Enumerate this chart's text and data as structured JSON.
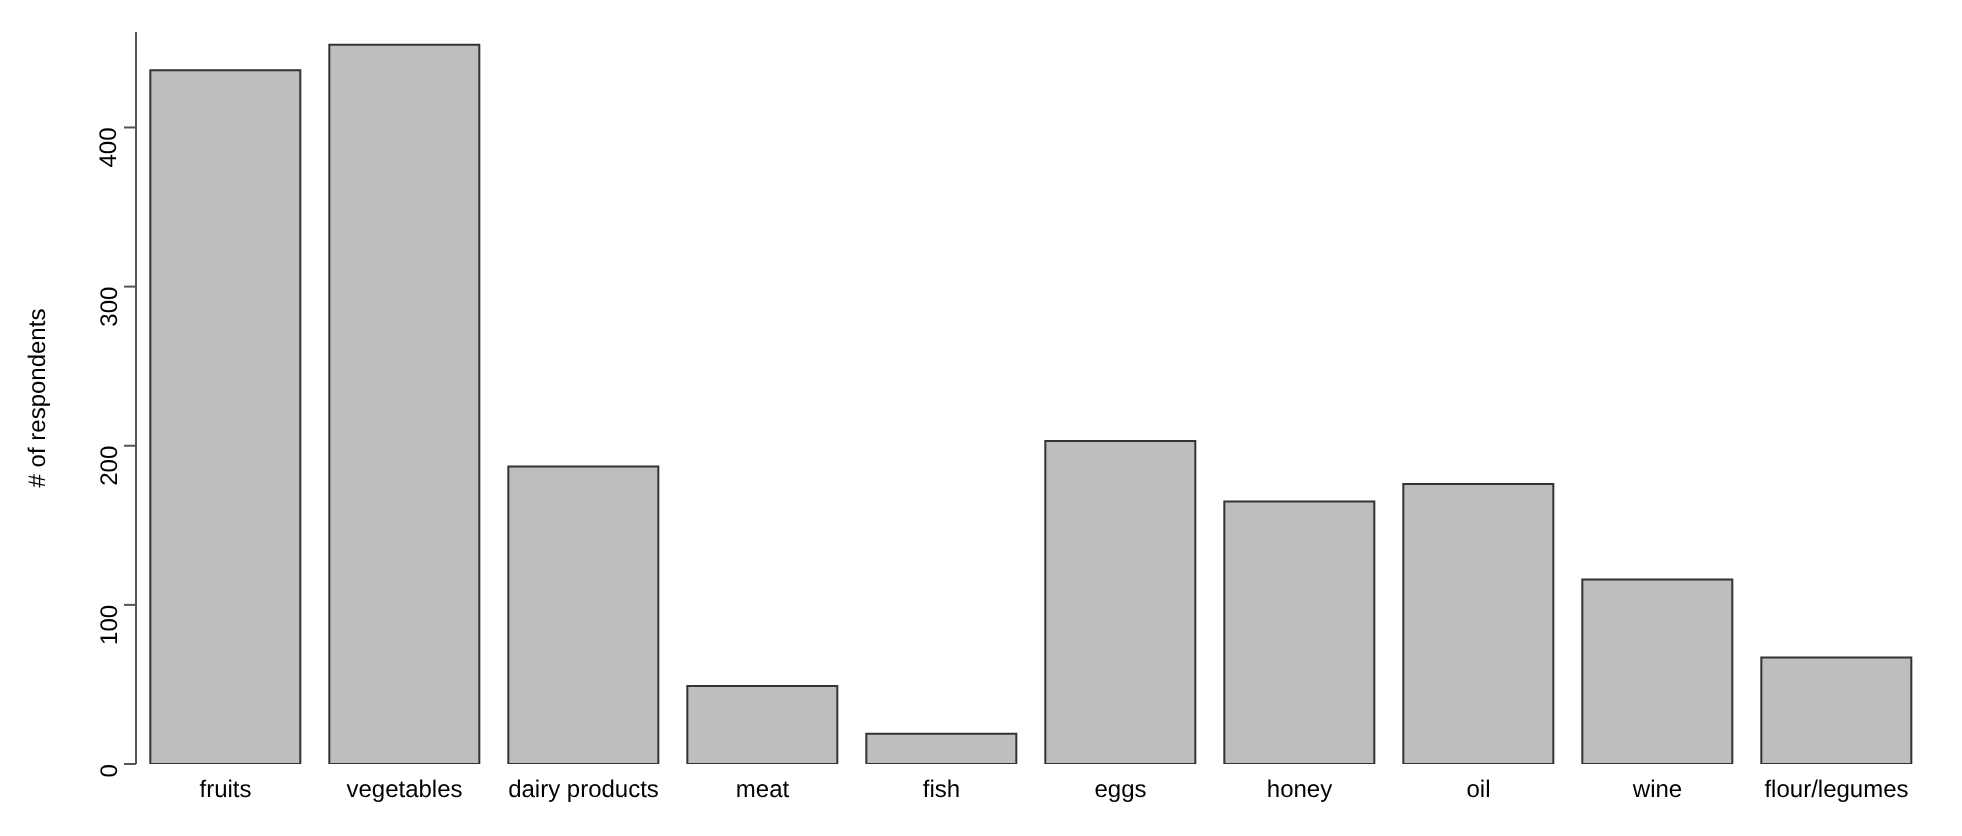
{
  "chart_data": {
    "type": "bar",
    "ylabel": "# of respondents",
    "categories": [
      "fruits",
      "vegetables",
      "dairy products",
      "meat",
      "fish",
      "eggs",
      "honey",
      "oil",
      "wine",
      "flour/legumes"
    ],
    "values": [
      436,
      452,
      187,
      49,
      19,
      203,
      165,
      176,
      116,
      67
    ],
    "color": "#bebebe",
    "ylim": [
      0,
      460
    ],
    "yticks": [
      0,
      100,
      200,
      300,
      400
    ]
  }
}
